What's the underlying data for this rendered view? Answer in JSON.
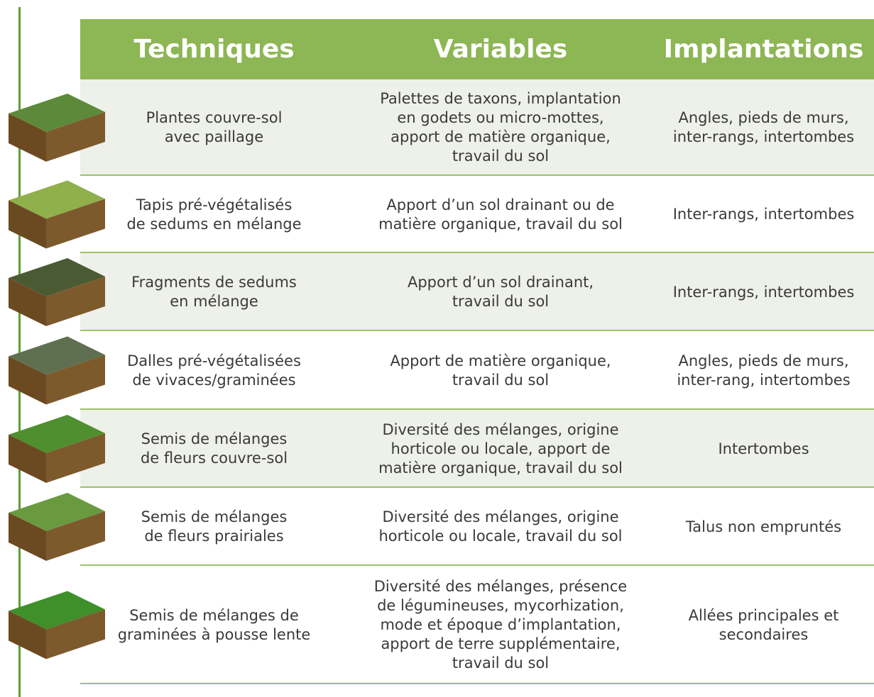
{
  "table": {
    "headers": [
      "Techniques",
      "Variables",
      "Implantations"
    ],
    "rows": [
      [
        "Plantes couvre-sol\navec paillage",
        "Palettes de taxons, implantation\nen godets ou micro-mottes,\napport de matière organique,\ntravail du sol",
        "Angles, pieds de murs,\ninter-rangs,  intertombes"
      ],
      [
        "Tapis pré-végétalisés\nde sedums en mélange",
        "Apport d’un sol drainant ou de\nmatière organique, travail du sol",
        "Inter-rangs, intertombes"
      ],
      [
        "Fragments de sedums\nen mélange",
        "Apport d’un sol drainant,\ntravail du sol",
        "Inter-rangs, intertombes"
      ],
      [
        "Dalles pré-végétalisées\nde vivaces/graminées",
        "Apport de matière organique,\ntravail du sol",
        "Angles, pieds de murs,\ninter-rang, intertombes"
      ],
      [
        "Semis de mélanges\nde fleurs couvre-sol",
        "Diversité des mélanges, origine\nhorticole ou locale, apport de\nmatière organique, travail du sol",
        "Intertombes"
      ],
      [
        "Semis de mélanges\nde fleurs prairiales",
        "Diversité des mélanges, origine\nhorticole ou locale, travail du sol",
        "Talus non empruntés"
      ],
      [
        "Semis de mélanges de\ngraminées à pousse lente",
        "Diversité des mélanges, présence\nde légumineuses, mycorhization,\nmode et époque d’implantation,\napport de terre supplémentaire,\ntravail du sol",
        "Allées principales et\nsecondaires"
      ]
    ]
  }
}
